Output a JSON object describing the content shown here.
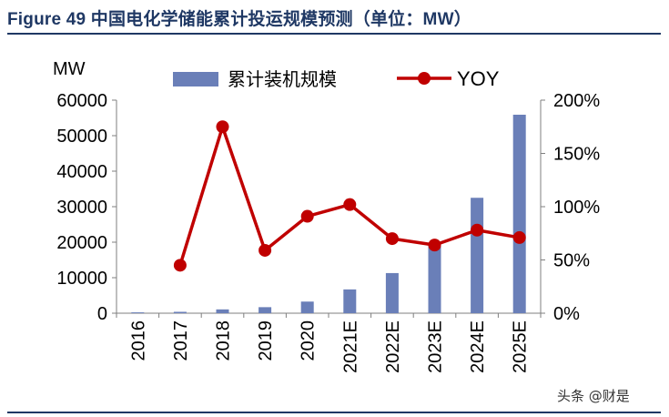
{
  "figure": {
    "title": "Figure 49 中国电化学储能累计投运规模预测（单位：MW）",
    "watermark": "头条 @财是"
  },
  "colors": {
    "bar": "#6a7fb8",
    "line": "#c00000",
    "title": "#1f3864",
    "axis": "#7f7f7f",
    "text": "#000000"
  },
  "chart_data": {
    "type": "bar",
    "categories": [
      "2016",
      "2017",
      "2018",
      "2019",
      "2020",
      "2021E",
      "2022E",
      "2023E",
      "2024E",
      "2025E"
    ],
    "series": [
      {
        "name": "累计装机规模",
        "type": "bar",
        "axis": "left",
        "values": [
          240,
          390,
          1070,
          1700,
          3270,
          6700,
          11300,
          19600,
          32500,
          55900
        ]
      },
      {
        "name": "YOY",
        "type": "line",
        "axis": "right",
        "values": [
          null,
          0.45,
          1.75,
          0.59,
          0.91,
          1.02,
          0.7,
          0.64,
          0.78,
          0.71
        ]
      }
    ],
    "y_left": {
      "unit": "MW",
      "min": 0,
      "max": 60000,
      "ticks": [
        0,
        10000,
        20000,
        30000,
        40000,
        50000,
        60000
      ]
    },
    "y_right": {
      "min": 0,
      "max": 2.0,
      "ticks": [
        "0%",
        "50%",
        "100%",
        "150%",
        "200%"
      ]
    },
    "legend_position": "top",
    "grid": false
  }
}
